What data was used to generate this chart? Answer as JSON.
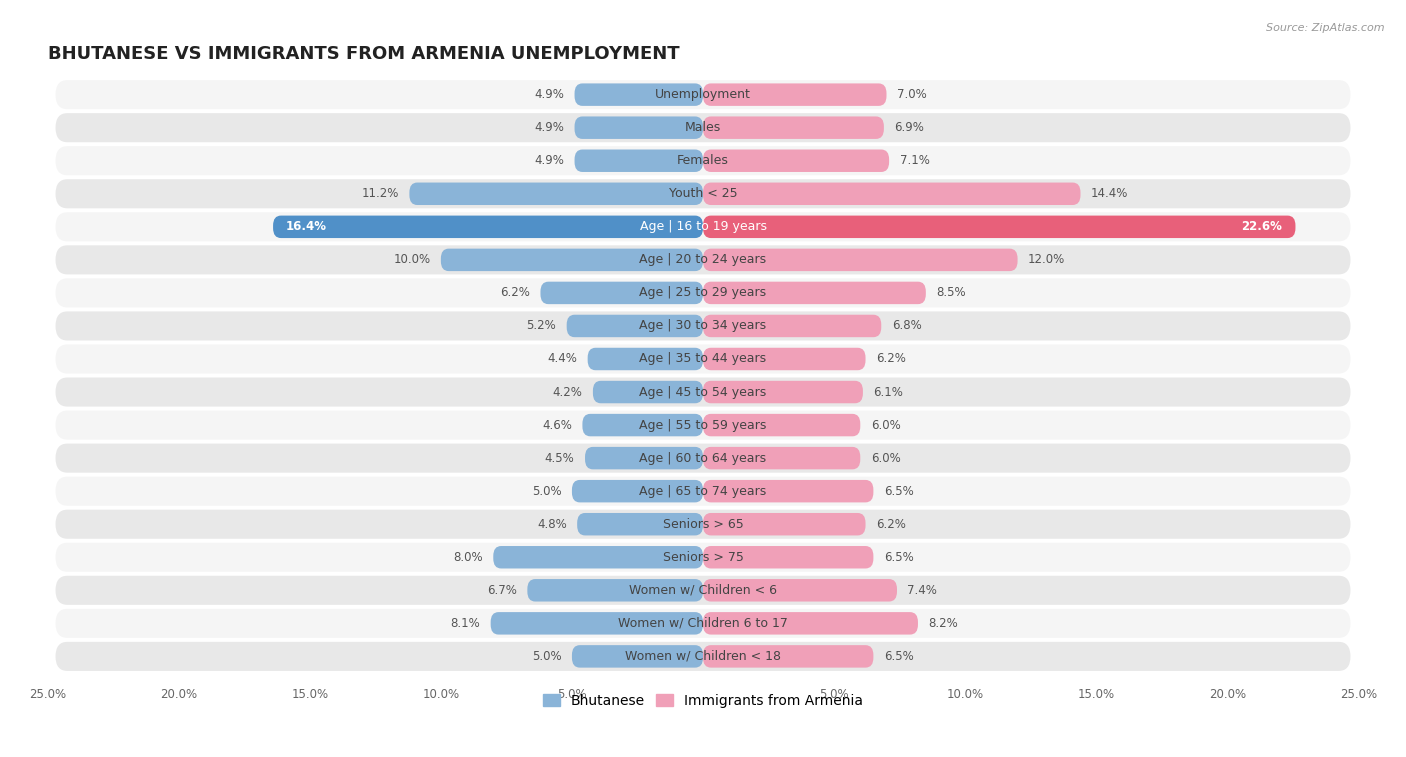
{
  "title": "BHUTANESE VS IMMIGRANTS FROM ARMENIA UNEMPLOYMENT",
  "source": "Source: ZipAtlas.com",
  "categories": [
    "Unemployment",
    "Males",
    "Females",
    "Youth < 25",
    "Age | 16 to 19 years",
    "Age | 20 to 24 years",
    "Age | 25 to 29 years",
    "Age | 30 to 34 years",
    "Age | 35 to 44 years",
    "Age | 45 to 54 years",
    "Age | 55 to 59 years",
    "Age | 60 to 64 years",
    "Age | 65 to 74 years",
    "Seniors > 65",
    "Seniors > 75",
    "Women w/ Children < 6",
    "Women w/ Children 6 to 17",
    "Women w/ Children < 18"
  ],
  "bhutanese": [
    4.9,
    4.9,
    4.9,
    11.2,
    16.4,
    10.0,
    6.2,
    5.2,
    4.4,
    4.2,
    4.6,
    4.5,
    5.0,
    4.8,
    8.0,
    6.7,
    8.1,
    5.0
  ],
  "armenia": [
    7.0,
    6.9,
    7.1,
    14.4,
    22.6,
    12.0,
    8.5,
    6.8,
    6.2,
    6.1,
    6.0,
    6.0,
    6.5,
    6.2,
    6.5,
    7.4,
    8.2,
    6.5
  ],
  "blue_color": "#8ab4d8",
  "pink_color": "#f0a0b8",
  "highlight_blue": "#5090c8",
  "highlight_pink": "#e8607a",
  "bg_color": "#ffffff",
  "row_bg_even": "#f5f5f5",
  "row_bg_odd": "#e8e8e8",
  "axis_limit": 25.0,
  "label_fontsize": 9.0,
  "title_fontsize": 13,
  "value_fontsize": 8.5,
  "legend_fontsize": 10,
  "highlight_row": 4
}
